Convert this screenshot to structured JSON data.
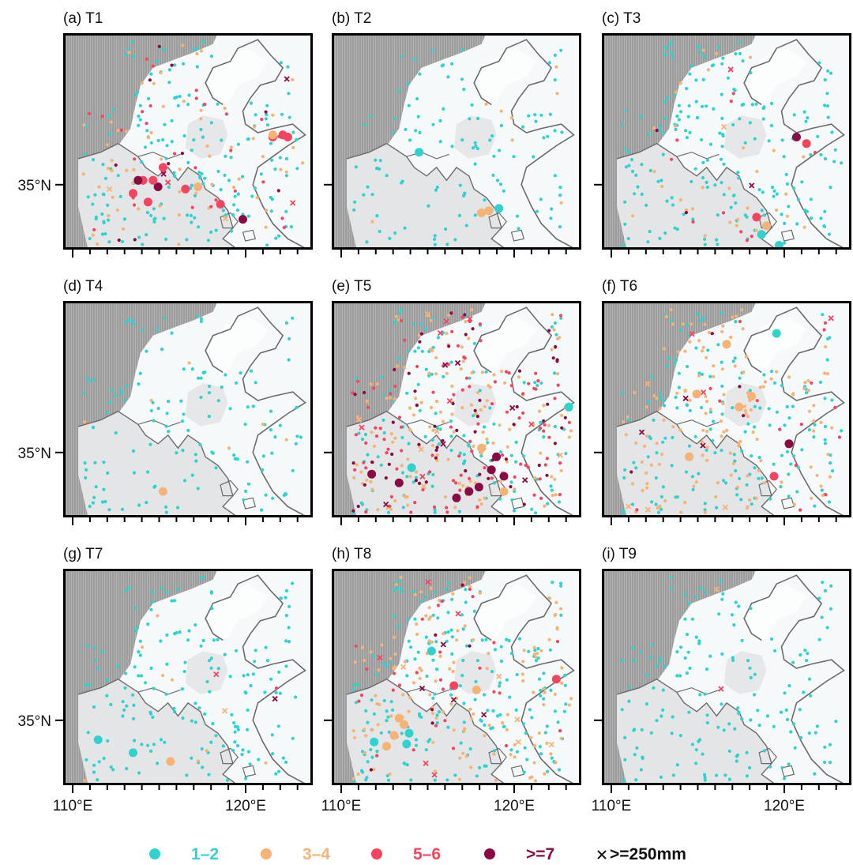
{
  "chart_data": {
    "type": "scatter",
    "panels": [
      {
        "id": "a",
        "title": "(a) T1",
        "counts": {
          "c12": 170,
          "c34": 60,
          "c56": 30,
          "c7": 10,
          "x": 6
        },
        "big": [
          [
            "c56",
            0.84,
            0.48
          ],
          [
            "c56",
            0.88,
            0.47
          ],
          [
            "c7",
            0.38,
            0.71
          ],
          [
            "c56",
            0.36,
            0.68
          ],
          [
            "c56",
            0.32,
            0.68
          ],
          [
            "c7",
            0.3,
            0.68
          ],
          [
            "c56",
            0.4,
            0.62
          ],
          [
            "c34",
            0.54,
            0.71
          ],
          [
            "c56",
            0.49,
            0.72
          ],
          [
            "c56",
            0.63,
            0.79
          ],
          [
            "c7",
            0.72,
            0.86
          ],
          [
            "c56",
            0.28,
            0.74
          ],
          [
            "c56",
            0.34,
            0.78
          ]
        ],
        "extra": [
          [
            "c34",
            0.84,
            0.47
          ],
          [
            "c56",
            0.9,
            0.48
          ]
        ]
      },
      {
        "id": "b",
        "title": "(b) T2",
        "counts": {
          "c12": 110,
          "c34": 8,
          "c56": 0,
          "c7": 0,
          "x": 0
        },
        "big": [
          [
            "c12",
            0.35,
            0.55
          ],
          [
            "c34",
            0.6,
            0.83
          ],
          [
            "c34",
            0.63,
            0.82
          ],
          [
            "c12",
            0.67,
            0.81
          ]
        ],
        "extra": []
      },
      {
        "id": "c",
        "title": "(c) T3",
        "counts": {
          "c12": 190,
          "c34": 30,
          "c56": 10,
          "c7": 2,
          "x": 3
        },
        "big": [
          [
            "c7",
            0.78,
            0.48
          ],
          [
            "c56",
            0.82,
            0.51
          ],
          [
            "c56",
            0.62,
            0.85
          ],
          [
            "c34",
            0.66,
            0.89
          ],
          [
            "c12",
            0.64,
            0.93
          ],
          [
            "c12",
            0.71,
            0.98
          ]
        ],
        "extra": []
      },
      {
        "id": "d",
        "title": "(d) T4",
        "counts": {
          "c12": 130,
          "c34": 6,
          "c56": 0,
          "c7": 0,
          "x": 0
        },
        "big": [
          [
            "c34",
            0.4,
            0.88
          ]
        ],
        "extra": []
      },
      {
        "id": "e",
        "title": "(e) T5",
        "counts": {
          "c12": 130,
          "c34": 140,
          "c56": 100,
          "c7": 60,
          "x": 20
        },
        "big": [
          [
            "c34",
            0.6,
            0.68
          ],
          [
            "c7",
            0.66,
            0.72
          ],
          [
            "c7",
            0.69,
            0.81
          ],
          [
            "c7",
            0.64,
            0.78
          ],
          [
            "c7",
            0.27,
            0.84
          ],
          [
            "c12",
            0.32,
            0.77
          ],
          [
            "c12",
            0.95,
            0.49
          ],
          [
            "c7",
            0.5,
            0.91
          ],
          [
            "c7",
            0.59,
            0.86
          ],
          [
            "c7",
            0.55,
            0.88
          ],
          [
            "c34",
            0.69,
            0.88
          ],
          [
            "c7",
            0.16,
            0.8
          ]
        ],
        "extra": []
      },
      {
        "id": "f",
        "title": "(f) T6",
        "counts": {
          "c12": 160,
          "c34": 140,
          "c56": 15,
          "c7": 4,
          "x": 10
        },
        "big": [
          [
            "c12",
            0.7,
            0.15
          ],
          [
            "c34",
            0.5,
            0.2
          ],
          [
            "c34",
            0.38,
            0.43
          ],
          [
            "c34",
            0.6,
            0.44
          ],
          [
            "c34",
            0.55,
            0.49
          ],
          [
            "c7",
            0.75,
            0.66
          ],
          [
            "c56",
            0.69,
            0.81
          ],
          [
            "c34",
            0.35,
            0.72
          ]
        ],
        "extra": []
      },
      {
        "id": "g",
        "title": "(g) T7",
        "counts": {
          "c12": 170,
          "c34": 8,
          "c56": 1,
          "c7": 0,
          "x": 3
        },
        "big": [
          [
            "c12",
            0.28,
            0.85
          ],
          [
            "c12",
            0.14,
            0.79
          ],
          [
            "c34",
            0.43,
            0.89
          ]
        ],
        "extra": []
      },
      {
        "id": "h",
        "title": "(h) T8",
        "counts": {
          "c12": 200,
          "c34": 140,
          "c56": 30,
          "c7": 6,
          "x": 14
        },
        "big": [
          [
            "c12",
            0.4,
            0.38
          ],
          [
            "c56",
            0.49,
            0.54
          ],
          [
            "c34",
            0.58,
            0.56
          ],
          [
            "c56",
            0.9,
            0.51
          ],
          [
            "c34",
            0.27,
            0.69
          ],
          [
            "c34",
            0.29,
            0.72
          ],
          [
            "c12",
            0.31,
            0.76
          ],
          [
            "c34",
            0.25,
            0.77
          ],
          [
            "c12",
            0.3,
            0.81
          ],
          [
            "c34",
            0.22,
            0.82
          ],
          [
            "c12",
            0.17,
            0.8
          ]
        ],
        "extra": []
      },
      {
        "id": "i",
        "title": "(i) T9",
        "counts": {
          "c12": 160,
          "c34": 0,
          "c56": 0,
          "c7": 0,
          "x": 2
        },
        "big": [],
        "extra": []
      }
    ],
    "y_tick_label": "35°N",
    "x_tick_labels": [
      "110°E",
      "120°E"
    ],
    "legend": [
      {
        "label": "1–2",
        "color": "#2ed3cf"
      },
      {
        "label": "3–4",
        "color": "#f7b274"
      },
      {
        "label": "5–6",
        "color": "#f5445f"
      },
      {
        "label": ">=7",
        "color": "#8b0a43"
      }
    ],
    "legend_marker_label": ">=250mm",
    "legend_marker_color": "#111111"
  }
}
